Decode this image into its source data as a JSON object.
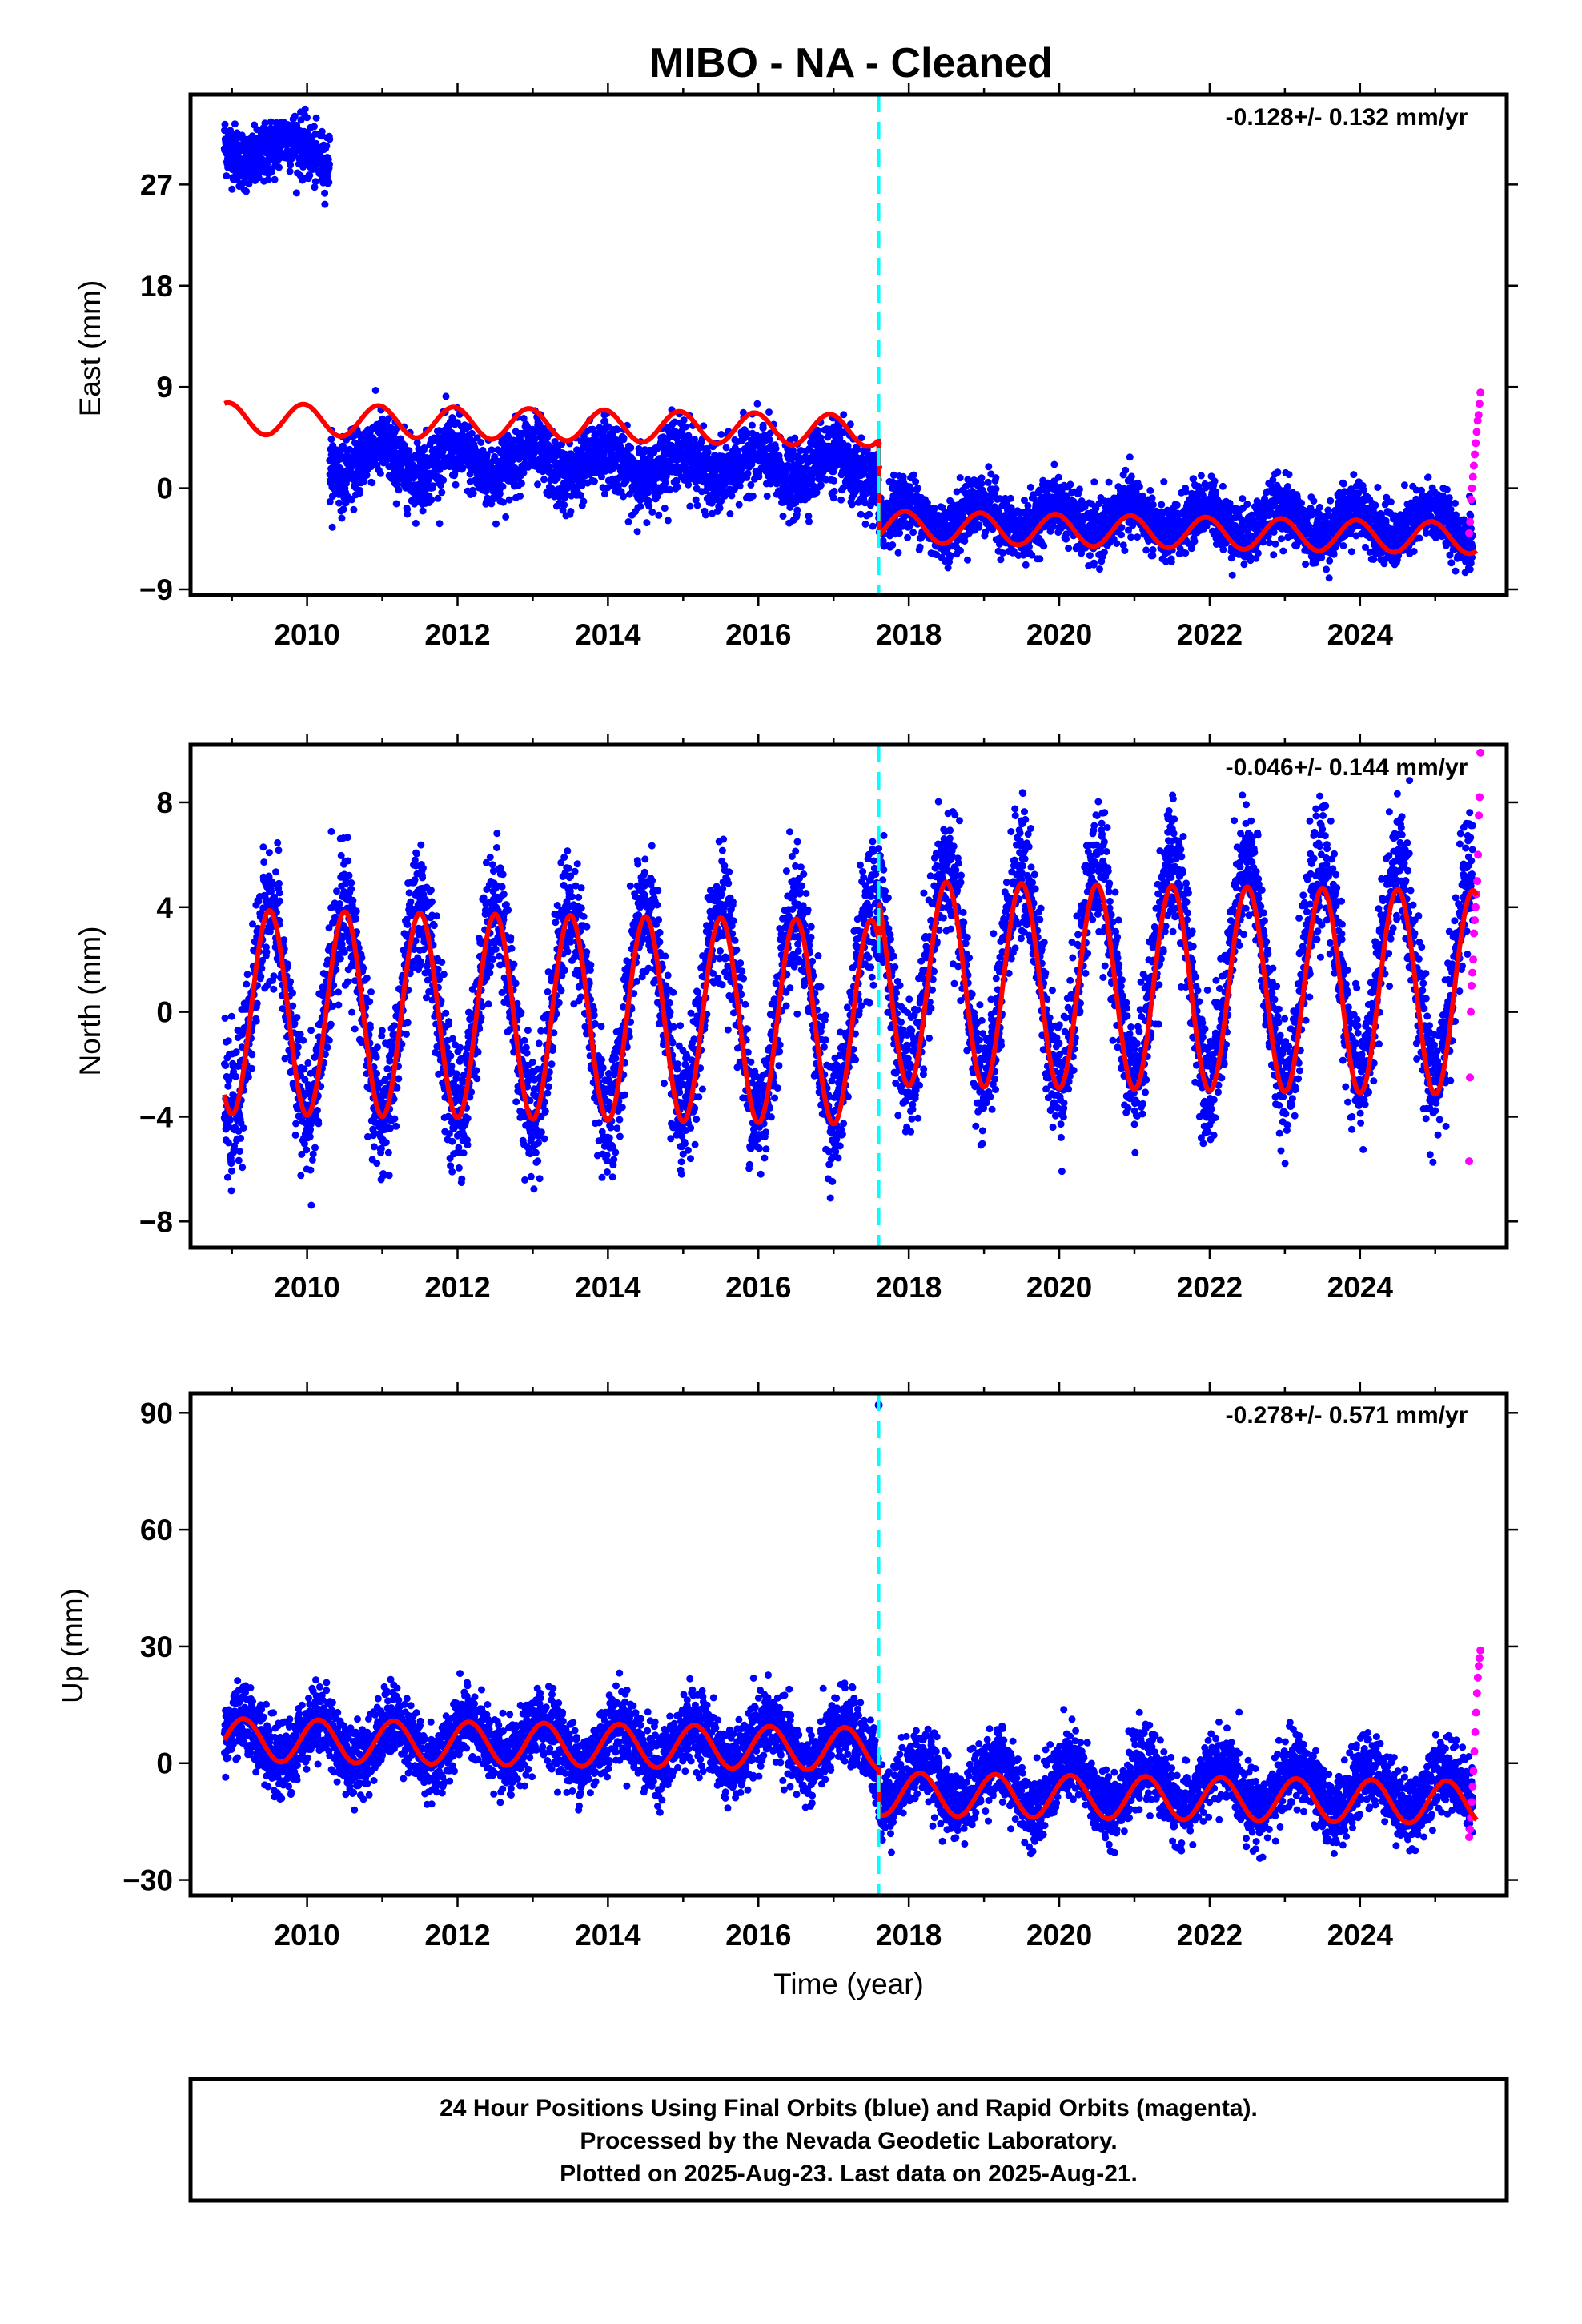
{
  "colors": {
    "final_orbits": "#0000ff",
    "rapid_orbits": "#ff00ff",
    "model": "#ff0000",
    "event_line": "#00ffff"
  },
  "chart_data": {
    "type": "scatter",
    "title": "MIBO  - NA - Cleaned",
    "xlabel": "Time (year)",
    "xlim": [
      2008.45,
      2025.95
    ],
    "xticks": [
      2010,
      2012,
      2014,
      2016,
      2018,
      2020,
      2022,
      2024
    ],
    "event_line_x": 2017.6,
    "panels": [
      {
        "name": "east",
        "ylabel": "East (mm)",
        "rate": "-0.128+/- 0.132 mm/yr",
        "ylim": [
          -9.5,
          35
        ],
        "yticks": [
          -9,
          0,
          9,
          18,
          27
        ],
        "segments": [
          {
            "start": 2008.9,
            "end": 2010.3,
            "offset": 30.0,
            "trend": 0.0,
            "amp_annual": 1.0,
            "phase": 0.5,
            "noise": 1.3
          },
          {
            "start": 2010.3,
            "end": 2017.6,
            "offset": 2.6,
            "trend": -0.13,
            "amp_annual": 1.3,
            "phase": 0.3,
            "noise": 1.5
          },
          {
            "start": 2017.6,
            "end": 2025.5,
            "offset": -2.5,
            "trend": -0.1,
            "amp_annual": 1.3,
            "phase": 0.3,
            "noise": 1.3
          }
        ],
        "model": {
          "pre_offset": 6.2,
          "post_offset": -2.3,
          "trend": -0.128,
          "amp_annual": 1.4,
          "phase": 0.3
        },
        "rapid": {
          "start": 2025.45,
          "end": 2025.6,
          "values": [
            -4,
            -3,
            -1,
            0,
            1,
            2,
            3,
            4,
            5,
            6,
            6.5,
            7.5,
            8.5
          ]
        }
      },
      {
        "name": "north",
        "ylabel": "North (mm)",
        "rate": "-0.046+/- 0.144 mm/yr",
        "ylim": [
          -9,
          10.2
        ],
        "yticks": [
          -8,
          -4,
          0,
          4,
          8
        ],
        "segments": [
          {
            "start": 2008.9,
            "end": 2017.6,
            "offset": 0.0,
            "trend": 0.0,
            "amp_annual": 4.0,
            "phase": -0.25,
            "noise": 1.2
          },
          {
            "start": 2017.6,
            "end": 2025.5,
            "offset": 1.5,
            "trend": 0.0,
            "amp_annual": 4.0,
            "phase": -0.25,
            "noise": 1.2
          }
        ],
        "model": {
          "pre_offset": 0.0,
          "post_offset": 1.5,
          "trend": -0.046,
          "amp_annual": 3.9,
          "phase": -0.25
        },
        "rapid": {
          "start": 2025.45,
          "end": 2025.6,
          "values": [
            -5.7,
            -2.5,
            0,
            1,
            1.5,
            2,
            3,
            3.5,
            4,
            4.5,
            5,
            6,
            7.5,
            8.2,
            9.9
          ]
        }
      },
      {
        "name": "up",
        "ylabel": "Up (mm)",
        "rate": "-0.278+/- 0.571 mm/yr",
        "ylim": [
          -34,
          95
        ],
        "yticks": [
          -30,
          0,
          30,
          60,
          90
        ],
        "segments": [
          {
            "start": 2008.9,
            "end": 2017.6,
            "offset": 6.0,
            "trend": -0.2,
            "amp_annual": 5.5,
            "phase": 0.1,
            "noise": 4.5
          },
          {
            "start": 2017.6,
            "end": 2025.5,
            "offset": -5.0,
            "trend": -0.3,
            "amp_annual": 5.5,
            "phase": 0.1,
            "noise": 4.5
          }
        ],
        "model": {
          "pre_offset": 6.0,
          "post_offset": -5.5,
          "trend": -0.278,
          "amp_annual": 5.5,
          "phase": 0.1
        },
        "rapid": {
          "start": 2025.45,
          "end": 2025.6,
          "values": [
            -19,
            -17,
            -14,
            -10,
            -6,
            -2,
            3,
            8,
            13,
            18,
            22,
            25,
            27,
            29
          ]
        },
        "outlier": {
          "x": 2017.6,
          "y": 92
        }
      }
    ]
  },
  "caption": {
    "line1": "24 Hour Positions Using Final Orbits (blue) and Rapid Orbits (magenta).",
    "line2": "Processed by the Nevada Geodetic Laboratory.",
    "line3": "Plotted on 2025-Aug-23. Last data on 2025-Aug-21."
  }
}
